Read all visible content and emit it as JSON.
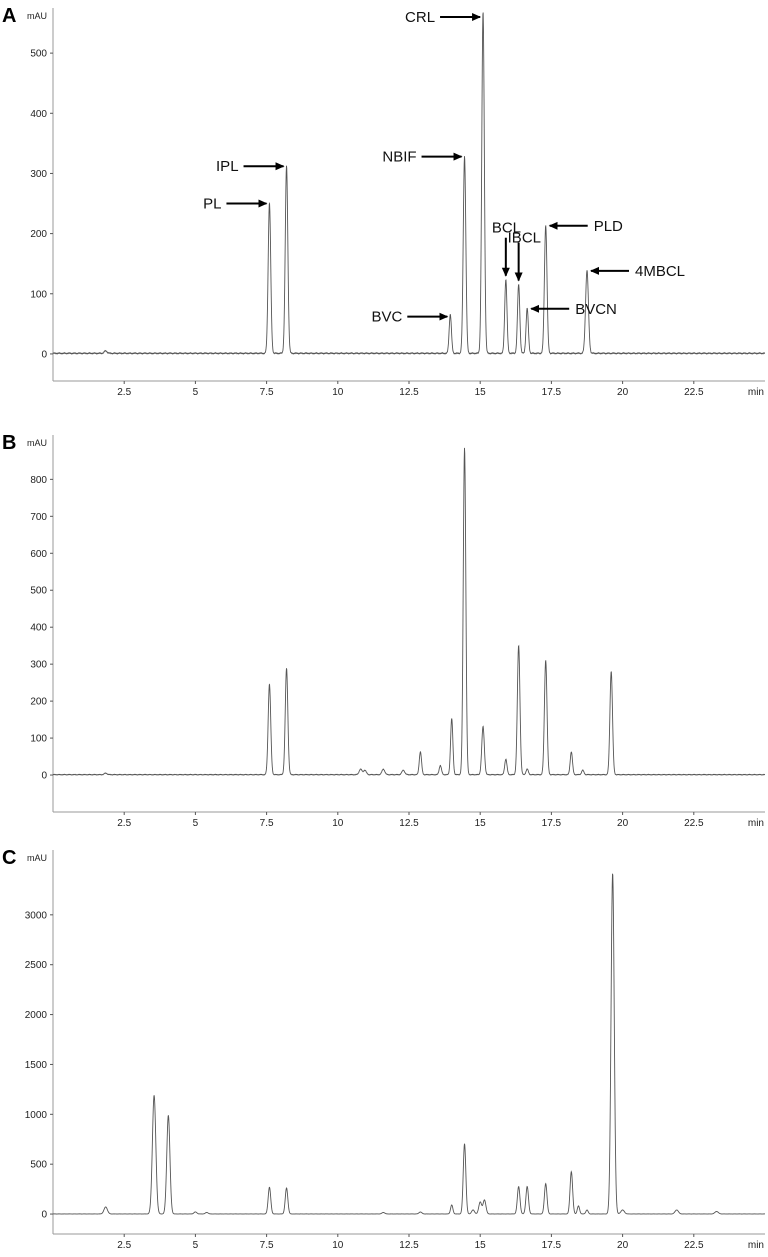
{
  "chart_data": [
    {
      "type": "line",
      "panel": "A",
      "ylabel": "mAU",
      "xlabel": "min",
      "xlim": [
        0,
        25
      ],
      "ylim": [
        -45,
        575
      ],
      "yticks": [
        0,
        100,
        200,
        300,
        400,
        500
      ],
      "xticks": [
        2.5,
        5,
        7.5,
        10,
        12.5,
        15,
        17.5,
        20,
        22.5
      ],
      "grid": false,
      "baseline": 1,
      "peaks": [
        {
          "x": 1.85,
          "y": 4,
          "w": 0.05
        },
        {
          "x": 7.6,
          "y": 250,
          "w": 0.045
        },
        {
          "x": 8.2,
          "y": 312,
          "w": 0.045
        },
        {
          "x": 13.95,
          "y": 65,
          "w": 0.04
        },
        {
          "x": 14.45,
          "y": 328,
          "w": 0.045
        },
        {
          "x": 15.1,
          "y": 568,
          "w": 0.045
        },
        {
          "x": 15.9,
          "y": 123,
          "w": 0.04
        },
        {
          "x": 16.35,
          "y": 115,
          "w": 0.04
        },
        {
          "x": 16.65,
          "y": 75,
          "w": 0.04
        },
        {
          "x": 17.3,
          "y": 213,
          "w": 0.045
        },
        {
          "x": 18.75,
          "y": 138,
          "w": 0.05
        }
      ],
      "annotations": [
        {
          "text": "PL",
          "x": 7.6,
          "y": 250,
          "dir": "right"
        },
        {
          "text": "IPL",
          "x": 8.2,
          "y": 312,
          "dir": "right"
        },
        {
          "text": "NBIF",
          "x": 14.45,
          "y": 328,
          "dir": "right"
        },
        {
          "text": "CRL",
          "x": 15.1,
          "y": 560,
          "dir": "right"
        },
        {
          "text": "BVC",
          "x": 13.95,
          "y": 62,
          "dir": "right"
        },
        {
          "text": "BCL",
          "x": 15.9,
          "y": 125,
          "dir": "down"
        },
        {
          "text": "IBCL",
          "x": 16.35,
          "y": 117,
          "dir": "down"
        },
        {
          "text": "PLD",
          "x": 17.3,
          "y": 213,
          "dir": "left"
        },
        {
          "text": "BVCN",
          "x": 16.65,
          "y": 75,
          "dir": "left"
        },
        {
          "text": "4MBCL",
          "x": 18.75,
          "y": 138,
          "dir": "left"
        }
      ]
    },
    {
      "type": "line",
      "panel": "B",
      "ylabel": "mAU",
      "xlabel": "min",
      "xlim": [
        0,
        25
      ],
      "ylim": [
        -100,
        920
      ],
      "yticks": [
        0,
        100,
        200,
        300,
        400,
        500,
        600,
        700,
        800
      ],
      "xticks": [
        2.5,
        5,
        7.5,
        10,
        12.5,
        15,
        17.5,
        20,
        22.5
      ],
      "grid": false,
      "baseline": 1,
      "peaks": [
        {
          "x": 1.85,
          "y": 4,
          "w": 0.05
        },
        {
          "x": 7.6,
          "y": 245,
          "w": 0.045
        },
        {
          "x": 8.2,
          "y": 288,
          "w": 0.045
        },
        {
          "x": 10.8,
          "y": 15,
          "w": 0.05
        },
        {
          "x": 10.95,
          "y": 12,
          "w": 0.05
        },
        {
          "x": 11.6,
          "y": 15,
          "w": 0.05
        },
        {
          "x": 12.3,
          "y": 12,
          "w": 0.05
        },
        {
          "x": 12.9,
          "y": 62,
          "w": 0.04
        },
        {
          "x": 13.6,
          "y": 25,
          "w": 0.04
        },
        {
          "x": 14.0,
          "y": 152,
          "w": 0.04
        },
        {
          "x": 14.45,
          "y": 885,
          "w": 0.045
        },
        {
          "x": 15.1,
          "y": 130,
          "w": 0.045
        },
        {
          "x": 15.9,
          "y": 42,
          "w": 0.04
        },
        {
          "x": 16.35,
          "y": 350,
          "w": 0.045
        },
        {
          "x": 16.65,
          "y": 15,
          "w": 0.04
        },
        {
          "x": 17.3,
          "y": 310,
          "w": 0.045
        },
        {
          "x": 18.2,
          "y": 62,
          "w": 0.04
        },
        {
          "x": 18.6,
          "y": 12,
          "w": 0.04
        },
        {
          "x": 19.6,
          "y": 280,
          "w": 0.045
        }
      ]
    },
    {
      "type": "line",
      "panel": "C",
      "ylabel": "mAU",
      "xlabel": "min",
      "xlim": [
        0,
        25
      ],
      "ylim": [
        -200,
        3650
      ],
      "yticks": [
        0,
        500,
        1000,
        1500,
        2000,
        2500,
        3000
      ],
      "xticks": [
        2.5,
        5,
        7.5,
        10,
        12.5,
        15,
        17.5,
        20,
        22.5
      ],
      "grid": false,
      "baseline": 1,
      "peaks": [
        {
          "x": 1.85,
          "y": 70,
          "w": 0.06
        },
        {
          "x": 3.55,
          "y": 1190,
          "w": 0.06
        },
        {
          "x": 4.05,
          "y": 990,
          "w": 0.055
        },
        {
          "x": 5.0,
          "y": 20,
          "w": 0.05
        },
        {
          "x": 5.4,
          "y": 15,
          "w": 0.05
        },
        {
          "x": 7.6,
          "y": 268,
          "w": 0.045
        },
        {
          "x": 8.2,
          "y": 260,
          "w": 0.045
        },
        {
          "x": 11.6,
          "y": 15,
          "w": 0.05
        },
        {
          "x": 12.9,
          "y": 20,
          "w": 0.05
        },
        {
          "x": 14.0,
          "y": 90,
          "w": 0.04
        },
        {
          "x": 14.45,
          "y": 705,
          "w": 0.045
        },
        {
          "x": 14.75,
          "y": 40,
          "w": 0.05
        },
        {
          "x": 15.0,
          "y": 120,
          "w": 0.05
        },
        {
          "x": 15.15,
          "y": 140,
          "w": 0.05
        },
        {
          "x": 16.35,
          "y": 275,
          "w": 0.045
        },
        {
          "x": 16.65,
          "y": 275,
          "w": 0.045
        },
        {
          "x": 17.3,
          "y": 305,
          "w": 0.045
        },
        {
          "x": 18.2,
          "y": 425,
          "w": 0.045
        },
        {
          "x": 18.45,
          "y": 80,
          "w": 0.04
        },
        {
          "x": 18.75,
          "y": 40,
          "w": 0.04
        },
        {
          "x": 19.65,
          "y": 3420,
          "w": 0.055
        },
        {
          "x": 20.0,
          "y": 40,
          "w": 0.06
        },
        {
          "x": 21.9,
          "y": 40,
          "w": 0.06
        },
        {
          "x": 23.3,
          "y": 25,
          "w": 0.06
        }
      ]
    }
  ]
}
